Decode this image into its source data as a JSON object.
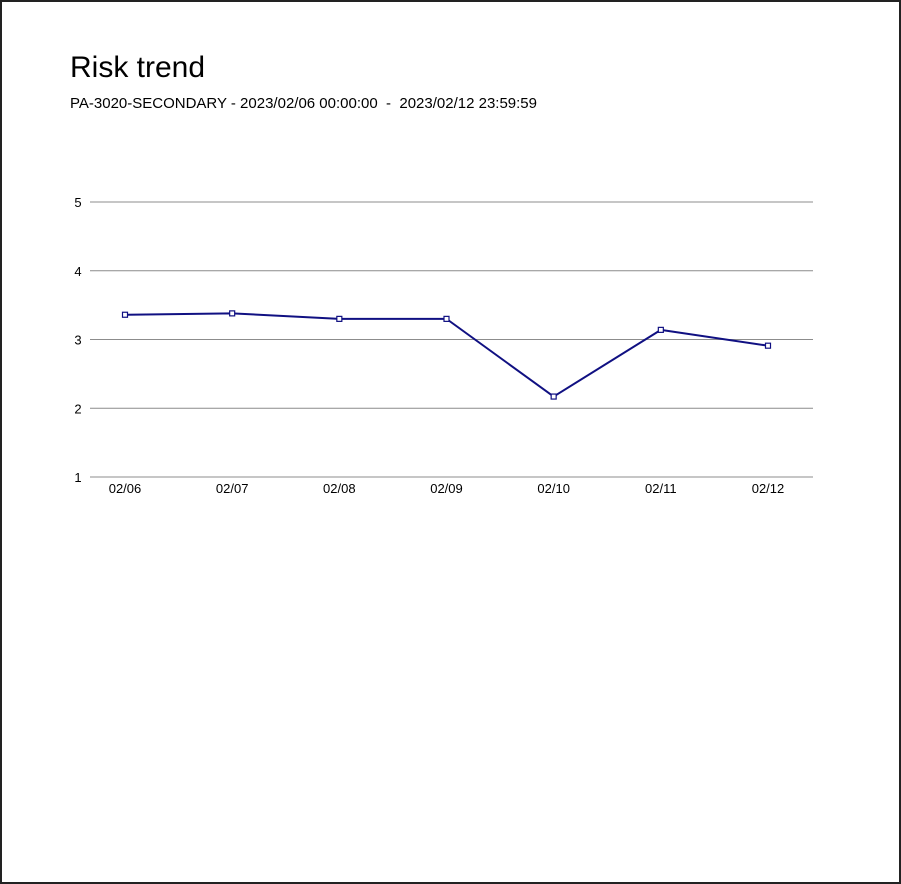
{
  "header": {
    "title": "Risk trend",
    "subtitle": "PA-3020-SECONDARY - 2023/02/06 00:00:00  -  2023/02/12 23:59:59"
  },
  "colors": {
    "line": "#101082",
    "grid": "#8c8c8c",
    "axis": "#8c8c8c"
  },
  "chart_data": {
    "type": "line",
    "categories": [
      "02/06",
      "02/07",
      "02/08",
      "02/09",
      "02/10",
      "02/11",
      "02/12"
    ],
    "series": [
      {
        "values": [
          3.36,
          3.38,
          3.3,
          3.3,
          2.17,
          3.14,
          2.91
        ]
      }
    ],
    "ylim": [
      1,
      5
    ],
    "yticks": [
      1,
      2,
      3,
      4,
      5
    ],
    "grid": true,
    "legend": "none",
    "marker": "square"
  }
}
